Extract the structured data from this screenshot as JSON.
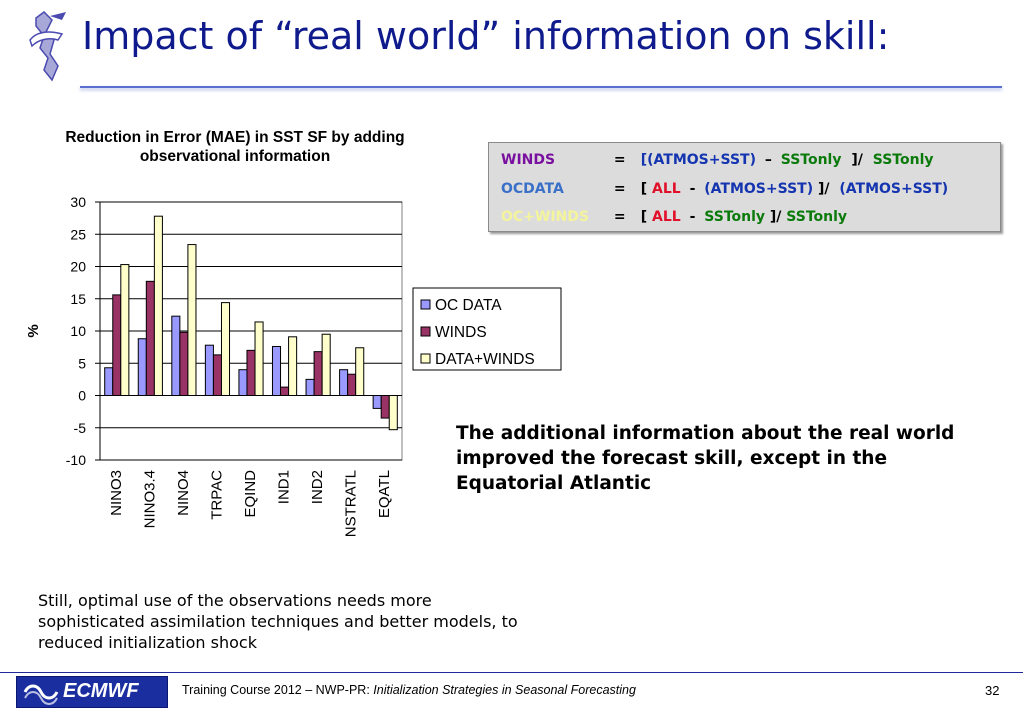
{
  "slide": {
    "title": "Impact of “real world” information on skill:",
    "conclusion": "The additional information about the real world improved the forecast skill, except in the Equatorial Atlantic",
    "note": "Still, optimal use of the observations needs more sophisticated assimilation techniques and better models, to reduced initialization shock"
  },
  "formulas": {
    "winds": {
      "label": "WINDS",
      "eq": "=",
      "l1": "[(ATMOS+SST)",
      "op1": "–",
      "t1": "SSTonly",
      "l2": "]/",
      "t2": "SSTonly"
    },
    "ocdata": {
      "label": "OCDATA",
      "eq": "=",
      "l1": "[",
      "t1": "ALL",
      "op1": "-",
      "t2": "(ATMOS+SST)",
      "l2": "]/",
      "t3": "(ATMOS+SST)"
    },
    "ocwinds": {
      "label": "OC+WINDS",
      "eq": "=",
      "l1": "[",
      "t1": "ALL",
      "op1": "-",
      "t2": "SSTonly",
      "l2": "]/",
      "t3": "SSTonly"
    }
  },
  "footer": {
    "logo_text": "ECMWF",
    "course": "Training Course 2012 – NWP-PR: ",
    "topic": "Initialization Strategies in Seasonal Forecasting",
    "page": "32"
  },
  "chart_data": {
    "type": "bar",
    "title": "Reduction in Error (MAE) in SST SF by adding observational information",
    "ylabel": "%",
    "xlabel": "",
    "ylim": [
      -10,
      30
    ],
    "yticks": [
      30,
      25,
      20,
      15,
      10,
      5,
      0,
      -5,
      -10
    ],
    "categories": [
      "NINO3",
      "NINO3.4",
      "NINO4",
      "TRPAC",
      "EQIND",
      "IND1",
      "IND2",
      "NSTRATL",
      "EQATL"
    ],
    "series": [
      {
        "name": "OC DATA",
        "color": "#9999ff",
        "values": [
          4.3,
          8.8,
          12.3,
          7.8,
          4.0,
          7.6,
          2.5,
          4.0,
          -2.0
        ]
      },
      {
        "name": "WINDS",
        "color": "#993366",
        "values": [
          15.6,
          17.7,
          9.8,
          6.3,
          7.0,
          1.3,
          6.8,
          3.3,
          -3.5
        ]
      },
      {
        "name": "DATA+WINDS",
        "color": "#ffffcc",
        "values": [
          20.3,
          27.8,
          23.4,
          14.4,
          11.4,
          9.1,
          9.5,
          7.4,
          -5.3
        ]
      }
    ],
    "legend_position": "right",
    "grid": true
  }
}
